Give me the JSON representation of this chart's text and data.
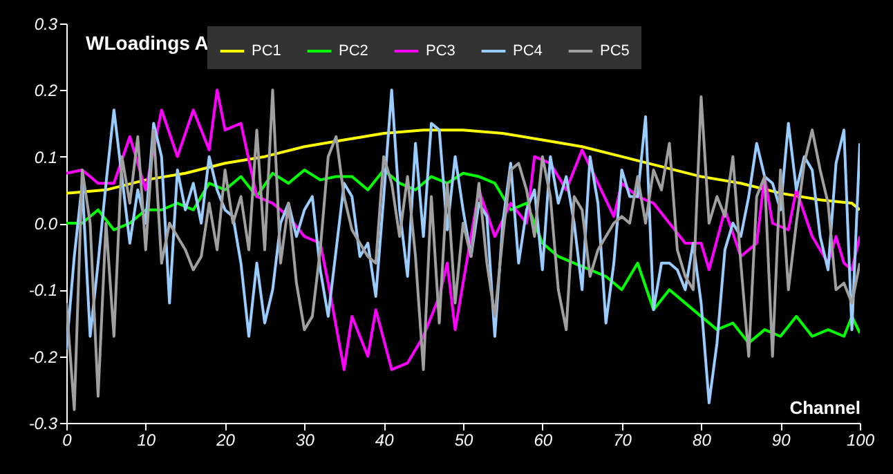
{
  "chart_data": {
    "type": "line",
    "title": "WLoadings A",
    "xlabel": "Channel",
    "legend": "top",
    "grid": false,
    "marker": "none",
    "line_style": "solid",
    "xlim": [
      0,
      100
    ],
    "xticks": [
      0,
      10,
      20,
      30,
      40,
      50,
      60,
      70,
      80,
      90,
      100
    ],
    "ylim": [
      -0.3,
      0.3
    ],
    "yticks": [
      {
        "value": -0.3,
        "label": "-0.3"
      },
      {
        "value": -0.2,
        "label": "-0.2"
      },
      {
        "value": -0.1,
        "label": "-0.1"
      },
      {
        "value": 0,
        "label": "0.0"
      },
      {
        "value": 0.1,
        "label": "0.1"
      },
      {
        "value": 0.2,
        "label": "0.2"
      },
      {
        "value": 0.3,
        "label": "0.3"
      }
    ],
    "x": [
      0,
      1,
      2,
      3,
      4,
      5,
      6,
      7,
      8,
      9,
      10,
      11,
      12,
      13,
      14,
      15,
      16,
      17,
      18,
      19,
      20,
      21,
      22,
      23,
      24,
      25,
      26,
      27,
      28,
      29,
      30,
      31,
      32,
      33,
      34,
      35,
      36,
      37,
      38,
      39,
      40,
      41,
      42,
      43,
      44,
      45,
      46,
      47,
      48,
      49,
      50,
      51,
      52,
      53,
      54,
      55,
      56,
      57,
      58,
      59,
      60,
      61,
      62,
      63,
      64,
      65,
      66,
      67,
      68,
      69,
      70,
      71,
      72,
      73,
      74,
      75,
      76,
      77,
      78,
      79,
      80,
      81,
      82,
      83,
      84,
      85,
      86,
      87,
      88,
      89,
      90,
      91,
      92,
      93,
      94,
      95,
      96,
      97,
      98,
      99,
      100
    ],
    "series": [
      {
        "name": "PC1",
        "color": "#ffff00",
        "x": [
          0,
          5,
          10,
          15,
          20,
          25,
          30,
          35,
          40,
          45,
          50,
          55,
          60,
          65,
          70,
          75,
          80,
          85,
          90,
          95,
          99,
          100
        ],
        "values": [
          0.045,
          0.05,
          0.065,
          0.075,
          0.09,
          0.1,
          0.115,
          0.125,
          0.135,
          0.14,
          0.14,
          0.135,
          0.125,
          0.115,
          0.1,
          0.085,
          0.07,
          0.06,
          0.045,
          0.035,
          0.03,
          0.02
        ]
      },
      {
        "name": "PC2",
        "color": "#00ff00",
        "x": [
          0,
          2,
          4,
          6,
          8,
          10,
          12,
          14,
          16,
          18,
          20,
          22,
          24,
          26,
          28,
          30,
          32,
          34,
          36,
          38,
          40,
          42,
          44,
          46,
          48,
          50,
          52,
          54,
          56,
          58,
          60,
          62,
          64,
          66,
          68,
          70,
          72,
          74,
          76,
          78,
          80,
          82,
          84,
          86,
          88,
          90,
          92,
          94,
          96,
          98,
          99,
          100
        ],
        "values": [
          0.0,
          0.0,
          0.02,
          -0.01,
          0.0,
          0.02,
          0.02,
          0.03,
          0.02,
          0.06,
          0.05,
          0.07,
          0.04,
          0.075,
          0.06,
          0.08,
          0.065,
          0.07,
          0.07,
          0.05,
          0.08,
          0.06,
          0.05,
          0.07,
          0.06,
          0.075,
          0.07,
          0.06,
          0.02,
          0.03,
          -0.03,
          -0.05,
          -0.06,
          -0.07,
          -0.08,
          -0.1,
          -0.06,
          -0.13,
          -0.1,
          -0.12,
          -0.14,
          -0.16,
          -0.15,
          -0.18,
          -0.16,
          -0.17,
          -0.14,
          -0.17,
          -0.16,
          -0.17,
          -0.14,
          -0.165
        ]
      },
      {
        "name": "PC3",
        "color": "#ff00ff",
        "x": [
          0,
          2,
          4,
          6,
          8,
          10,
          12,
          14,
          16,
          18,
          19,
          20,
          22,
          24,
          26,
          28,
          30,
          32,
          33,
          35,
          36,
          38,
          39,
          41,
          43,
          45,
          47,
          48,
          49,
          51,
          52,
          54,
          56,
          58,
          59,
          61,
          63,
          65,
          67,
          69,
          70,
          72,
          74,
          76,
          78,
          80,
          81,
          83,
          85,
          87,
          88,
          89,
          91,
          92,
          94,
          96,
          97,
          98,
          99,
          100
        ],
        "values": [
          0.075,
          0.08,
          0.06,
          0.06,
          0.13,
          0.05,
          0.17,
          0.1,
          0.17,
          0.11,
          0.2,
          0.14,
          0.15,
          0.04,
          0.03,
          0.01,
          -0.02,
          -0.03,
          -0.09,
          -0.22,
          -0.14,
          -0.2,
          -0.13,
          -0.22,
          -0.21,
          -0.17,
          -0.11,
          -0.06,
          -0.16,
          -0.02,
          0.05,
          -0.02,
          0.03,
          0.0,
          0.1,
          0.09,
          0.05,
          0.11,
          0.06,
          0.01,
          0.06,
          0.04,
          0.03,
          0.0,
          -0.03,
          -0.03,
          -0.07,
          0.02,
          -0.05,
          -0.03,
          0.07,
          0.0,
          -0.01,
          0.05,
          -0.02,
          -0.06,
          -0.02,
          -0.06,
          -0.07,
          -0.02
        ]
      },
      {
        "name": "PC4",
        "color": "#99ccff",
        "values": [
          -0.19,
          -0.05,
          0.06,
          -0.17,
          -0.06,
          0.06,
          0.17,
          0.07,
          -0.03,
          0.05,
          0.0,
          0.15,
          0.1,
          -0.12,
          0.08,
          0.02,
          0.06,
          0.0,
          0.1,
          0.05,
          0.02,
          0.01,
          -0.06,
          -0.17,
          -0.06,
          -0.15,
          -0.1,
          0.0,
          0.03,
          -0.02,
          0.02,
          0.04,
          -0.07,
          -0.14,
          -0.04,
          0.06,
          0.04,
          -0.05,
          -0.03,
          -0.11,
          0.04,
          0.2,
          0.02,
          -0.08,
          0.12,
          -0.02,
          0.15,
          0.14,
          -0.01,
          0.1,
          0.02,
          -0.05,
          0.03,
          0.01,
          -0.17,
          0.0,
          0.09,
          -0.06,
          0.02,
          0.05,
          -0.07,
          0.1,
          0.03,
          0.07,
          0.0,
          -0.1,
          0.1,
          0.03,
          -0.15,
          -0.06,
          0.08,
          0.04,
          0.04,
          0.16,
          -0.13,
          -0.06,
          -0.06,
          -0.07,
          -0.1,
          -0.03,
          -0.12,
          -0.27,
          -0.18,
          -0.04,
          0.0,
          -0.02,
          0.04,
          0.12,
          0.07,
          0.06,
          0.02,
          0.15,
          0.05,
          0.1,
          0.08,
          -0.02,
          -0.07,
          0.09,
          0.14,
          -0.16,
          0.12
        ]
      },
      {
        "name": "PC5",
        "color": "#a0a0a0",
        "values": [
          -0.12,
          -0.28,
          0.08,
          0.0,
          -0.26,
          0.0,
          -0.17,
          0.1,
          0.03,
          0.13,
          -0.04,
          0.14,
          -0.06,
          0.0,
          -0.02,
          -0.04,
          -0.07,
          -0.05,
          0.03,
          -0.04,
          0.08,
          0.0,
          0.04,
          -0.04,
          0.14,
          -0.04,
          0.2,
          -0.06,
          0.03,
          -0.09,
          -0.16,
          -0.14,
          -0.04,
          0.1,
          0.13,
          0.04,
          -0.01,
          -0.03,
          -0.05,
          -0.06,
          0.1,
          0.06,
          -0.02,
          0.07,
          -0.05,
          -0.22,
          0.04,
          -0.15,
          0.06,
          -0.12,
          0.0,
          -0.05,
          0.06,
          -0.06,
          -0.14,
          -0.02,
          0.08,
          0.09,
          0.05,
          -0.02,
          0.1,
          0.04,
          -0.1,
          -0.16,
          0.04,
          0.02,
          -0.08,
          -0.04,
          -0.02,
          0.0,
          0.01,
          0.0,
          0.07,
          0.0,
          0.08,
          0.05,
          0.12,
          -0.04,
          -0.08,
          -0.1,
          0.19,
          0.0,
          0.04,
          0.01,
          0.1,
          -0.06,
          -0.2,
          0.04,
          0.07,
          -0.2,
          0.08,
          -0.1,
          0.0,
          0.09,
          0.14,
          0.08,
          0.03,
          -0.1,
          -0.09,
          -0.12,
          -0.06
        ]
      }
    ]
  }
}
